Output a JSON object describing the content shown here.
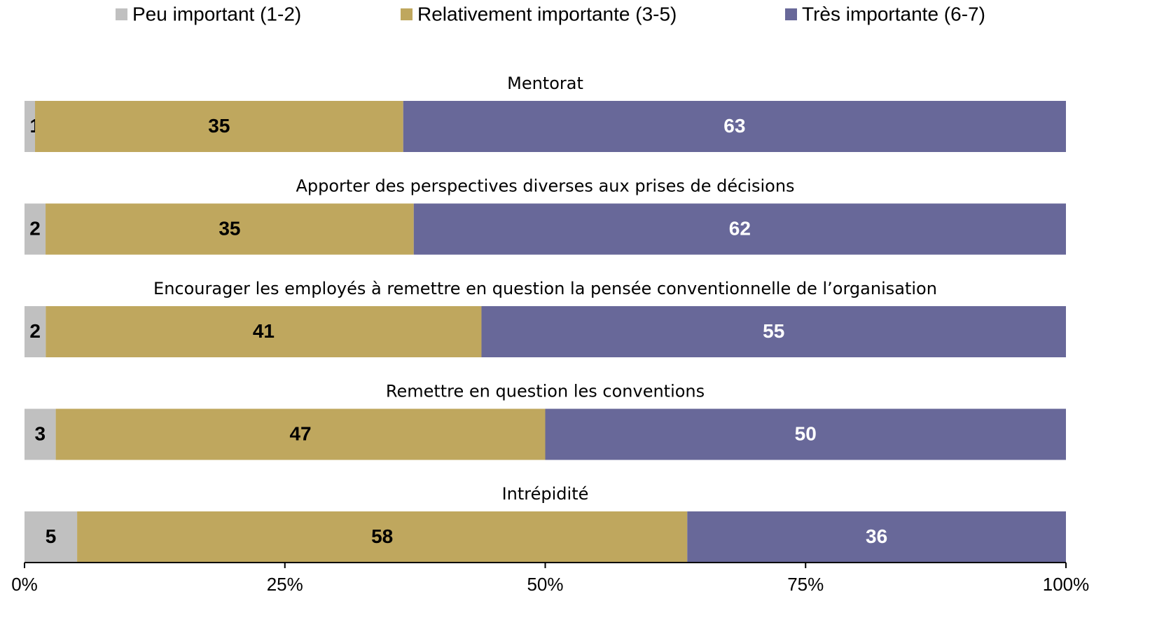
{
  "chart_data": {
    "type": "bar",
    "orientation": "horizontal",
    "stacked": "percent",
    "categories": [
      "Mentorat",
      "Apporter des perspectives diverses aux prises de décisions",
      "Encourager les employés à remettre en question la pensée conventionnelle de l’organisation",
      "Remettre en question les conventions",
      "Intrépidité"
    ],
    "series": [
      {
        "name": "Peu important (1-2)",
        "color": "#c0c0c0",
        "label_color": "#000000",
        "values": [
          1,
          2,
          2,
          3,
          5
        ]
      },
      {
        "name": "Relativement importante (3-5)",
        "color": "#bfa75e",
        "label_color": "#000000",
        "values": [
          35,
          35,
          41,
          47,
          58
        ]
      },
      {
        "name": "Très importante (6-7)",
        "color": "#686899",
        "label_color": "#ffffff",
        "values": [
          63,
          62,
          55,
          50,
          36
        ]
      }
    ],
    "xlim": [
      0,
      100
    ],
    "xticks": [
      {
        "value": 0,
        "label": "0%"
      },
      {
        "value": 25,
        "label": "25%"
      },
      {
        "value": 50,
        "label": "50%"
      },
      {
        "value": 75,
        "label": "75%"
      },
      {
        "value": 100,
        "label": "100%"
      }
    ],
    "legend": "top"
  }
}
